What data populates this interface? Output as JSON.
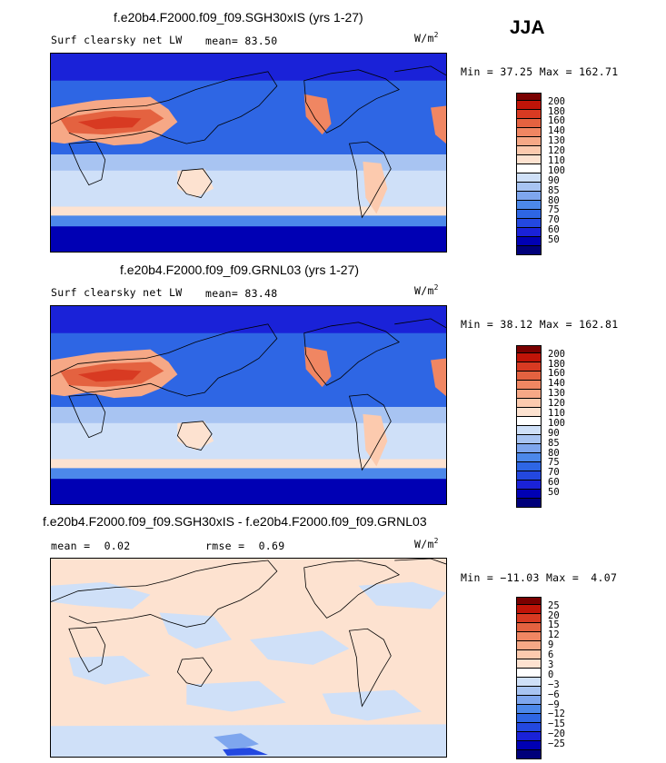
{
  "season": "JJA",
  "colors": {
    "palette_abs": [
      "#00007a",
      "#0000b4",
      "#1a22d8",
      "#2348e0",
      "#2e66e4",
      "#4c88ea",
      "#7ea6ee",
      "#a8c4f2",
      "#cfe0f8",
      "#ffffff",
      "#fde2d0",
      "#fccaae",
      "#f6a886",
      "#f08662",
      "#e46240",
      "#d83a22",
      "#c01408",
      "#7a0000"
    ],
    "palette_diff": [
      "#00007a",
      "#0000b4",
      "#1a22d8",
      "#2348e0",
      "#2e66e4",
      "#4c88ea",
      "#7ea6ee",
      "#a8c4f2",
      "#cfe0f8",
      "#ffffff",
      "#fde2d0",
      "#fccaae",
      "#f6a886",
      "#f08662",
      "#e46240",
      "#d83a22",
      "#c01408",
      "#7a0000"
    ]
  },
  "panels": [
    {
      "title": "f.e20b4.F2000.f09_f09.SGH30xIS (yrs 1-27)",
      "variable": "Surf clearsky net LW",
      "mean_label": "mean=",
      "mean_value": "83.50",
      "units": "W/m",
      "units_exp": "2",
      "min_label": "Min =",
      "min_value": "37.25",
      "max_label": "Max =",
      "max_value": "162.71",
      "levels": [
        "200",
        "180",
        "160",
        "140",
        "130",
        "120",
        "110",
        "100",
        "90",
        "85",
        "80",
        "75",
        "70",
        "60",
        "50"
      ]
    },
    {
      "title": "f.e20b4.F2000.f09_f09.GRNL03 (yrs 1-27)",
      "variable": "Surf clearsky net LW",
      "mean_label": "mean=",
      "mean_value": "83.48",
      "units": "W/m",
      "units_exp": "2",
      "min_label": "Min =",
      "min_value": "38.12",
      "max_label": "Max =",
      "max_value": "162.81",
      "levels": [
        "200",
        "180",
        "160",
        "140",
        "130",
        "120",
        "110",
        "100",
        "90",
        "85",
        "80",
        "75",
        "70",
        "60",
        "50"
      ]
    },
    {
      "title": "f.e20b4.F2000.f09_f09.SGH30xIS - f.e20b4.F2000.f09_f09.GRNL03",
      "mean_label": "mean =",
      "mean_value": "0.02",
      "rmse_label": "rmse =",
      "rmse_value": "0.69",
      "units": "W/m",
      "units_exp": "2",
      "min_label": "Min =",
      "min_value": "−11.03",
      "max_label": "Max =",
      "max_value": "4.07",
      "levels": [
        "25",
        "20",
        "15",
        "12",
        "9",
        "6",
        "3",
        "0",
        "−3",
        "−6",
        "−9",
        "−12",
        "−15",
        "−20",
        "−25"
      ]
    }
  ]
}
